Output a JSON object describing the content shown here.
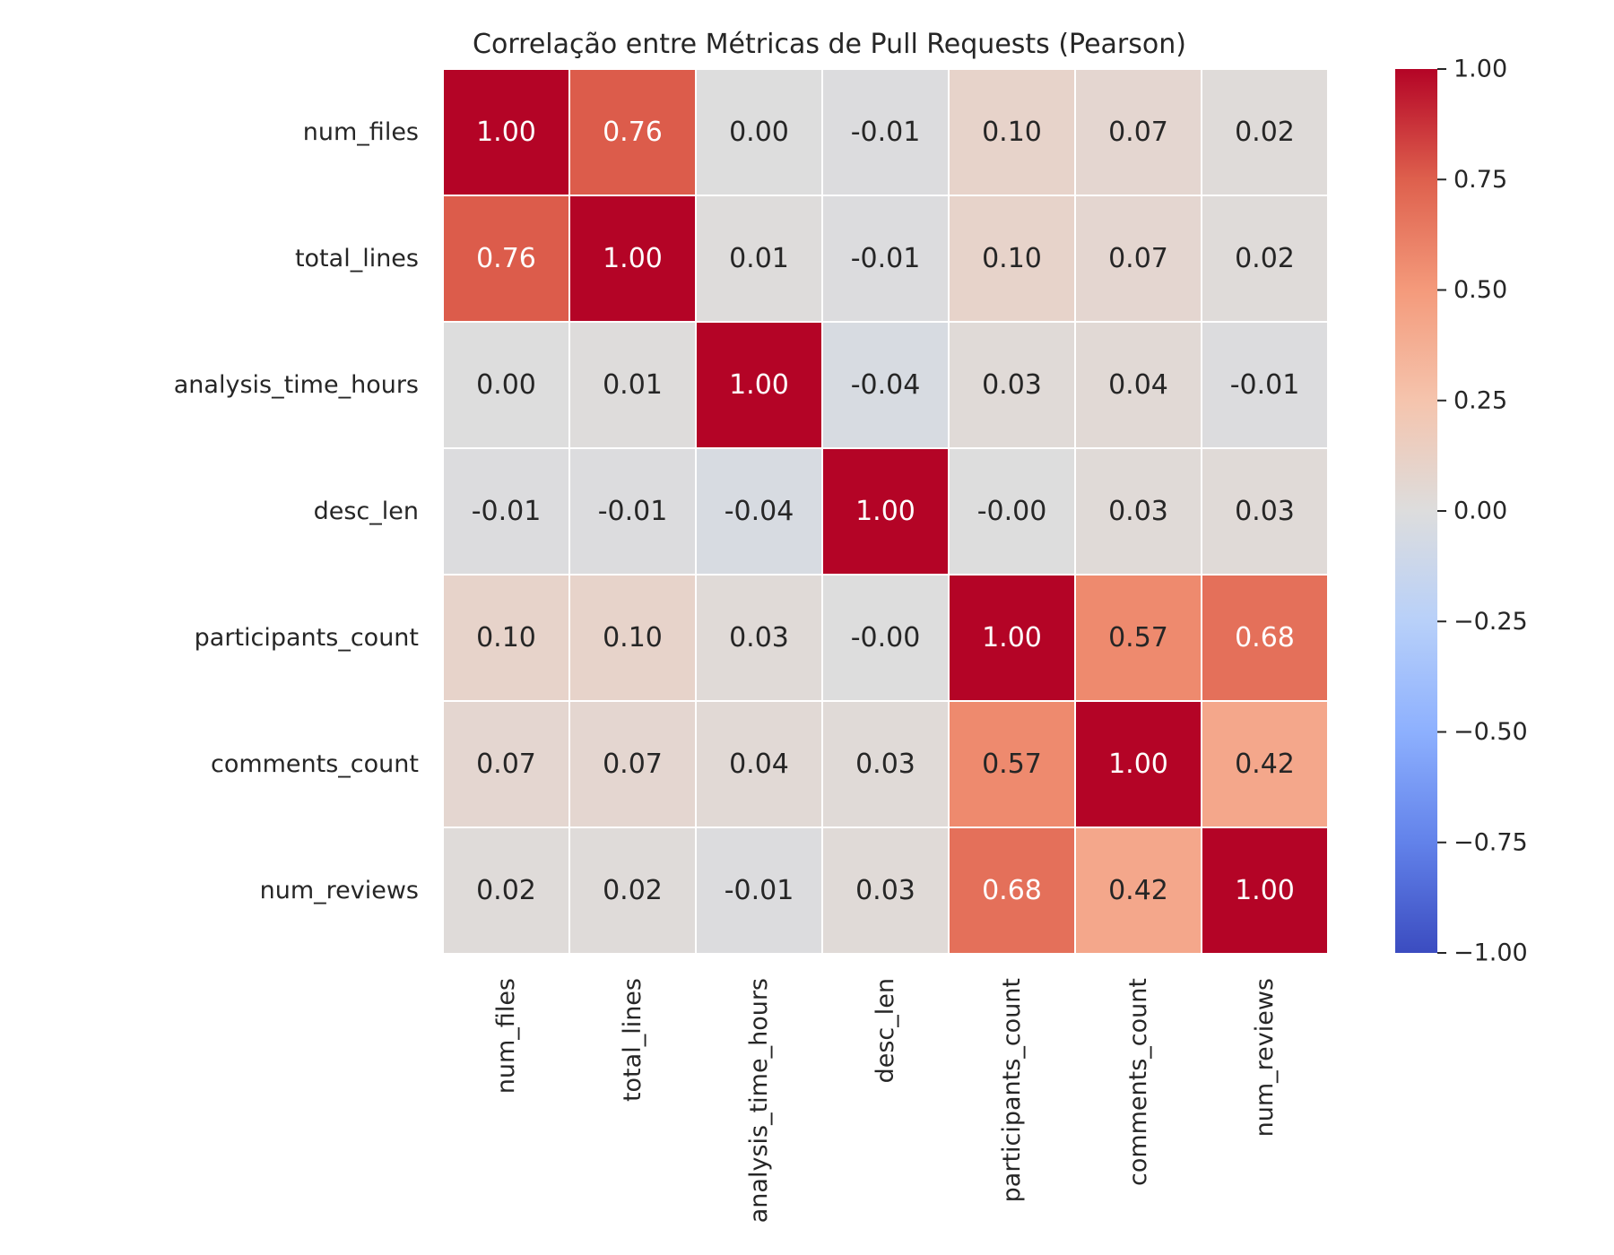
{
  "chart_data": {
    "type": "heatmap",
    "title": "Correlação entre Métricas de Pull Requests (Pearson)",
    "xlabel": "",
    "ylabel": "",
    "x_labels": [
      "num_files",
      "total_lines",
      "analysis_time_hours",
      "desc_len",
      "participants_count",
      "comments_count",
      "num_reviews"
    ],
    "y_labels": [
      "num_files",
      "total_lines",
      "analysis_time_hours",
      "desc_len",
      "participants_count",
      "comments_count",
      "num_reviews"
    ],
    "values": [
      [
        1.0,
        0.76,
        0.0,
        -0.01,
        0.1,
        0.07,
        0.02
      ],
      [
        0.76,
        1.0,
        0.01,
        -0.01,
        0.1,
        0.07,
        0.02
      ],
      [
        0.0,
        0.01,
        1.0,
        -0.04,
        0.03,
        0.04,
        -0.01
      ],
      [
        -0.01,
        -0.01,
        -0.04,
        1.0,
        -0.0,
        0.03,
        0.03
      ],
      [
        0.1,
        0.1,
        0.03,
        -0.0,
        1.0,
        0.57,
        0.68
      ],
      [
        0.07,
        0.07,
        0.04,
        0.03,
        0.57,
        1.0,
        0.42
      ],
      [
        0.02,
        0.02,
        -0.01,
        0.03,
        0.68,
        0.42,
        1.0
      ]
    ],
    "cell_labels": [
      [
        "1.00",
        "0.76",
        "0.00",
        "-0.01",
        "0.10",
        "0.07",
        "0.02"
      ],
      [
        "0.76",
        "1.00",
        "0.01",
        "-0.01",
        "0.10",
        "0.07",
        "0.02"
      ],
      [
        "0.00",
        "0.01",
        "1.00",
        "-0.04",
        "0.03",
        "0.04",
        "-0.01"
      ],
      [
        "-0.01",
        "-0.01",
        "-0.04",
        "1.00",
        "-0.00",
        "0.03",
        "0.03"
      ],
      [
        "0.10",
        "0.10",
        "0.03",
        "-0.00",
        "1.00",
        "0.57",
        "0.68"
      ],
      [
        "0.07",
        "0.07",
        "0.04",
        "0.03",
        "0.57",
        "1.00",
        "0.42"
      ],
      [
        "0.02",
        "0.02",
        "-0.01",
        "0.03",
        "0.68",
        "0.42",
        "1.00"
      ]
    ],
    "colormap": "coolwarm",
    "vmin": -1.0,
    "vmax": 1.0,
    "colorbar": {
      "ticks": [
        1.0,
        0.75,
        0.5,
        0.25,
        0.0,
        -0.25,
        -0.5,
        -0.75,
        -1.0
      ],
      "tick_labels": [
        "1.00",
        "0.75",
        "0.50",
        "0.25",
        "0.00",
        "−0.25",
        "−0.50",
        "−0.75",
        "−1.00"
      ],
      "placement": "right"
    },
    "colors": {
      "cold": "#3b4cc0",
      "neutral": "#dddddd",
      "hot": "#b40426",
      "gridline": "#ffffff",
      "text_dark": "#262626",
      "text_light": "#ffffff"
    }
  }
}
